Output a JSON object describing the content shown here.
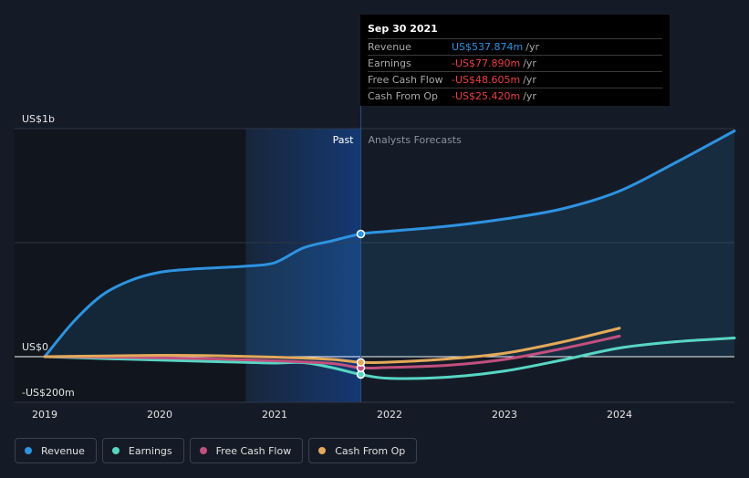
{
  "tooltip": {
    "date": "Sep 30 2021",
    "rows": [
      {
        "label": "Revenue",
        "value": "US$537.874m",
        "unit": "/yr"
      },
      {
        "label": "Earnings",
        "value": "-US$77.890m",
        "unit": "/yr"
      },
      {
        "label": "Free Cash Flow",
        "value": "-US$48.605m",
        "unit": "/yr"
      },
      {
        "label": "Cash From Op",
        "value": "-US$25.420m",
        "unit": "/yr"
      }
    ]
  },
  "labels": {
    "past": "Past",
    "forecast": "Analysts Forecasts"
  },
  "legend": [
    {
      "label": "Revenue",
      "color": "#2e93e0"
    },
    {
      "label": "Earnings",
      "color": "#58d6c4"
    },
    {
      "label": "Free Cash Flow",
      "color": "#c2507e"
    },
    {
      "label": "Cash From Op",
      "color": "#e3a95a"
    }
  ],
  "chart_data": {
    "type": "line",
    "y_tick_labels": [
      "US$1b",
      "US$0",
      "-US$200m"
    ],
    "x_tick_labels": [
      "2019",
      "2020",
      "2021",
      "2022",
      "2023",
      "2024"
    ],
    "ylim": [
      -200,
      1000
    ],
    "xlim": [
      2019.0,
      2025.0
    ],
    "past_end": 2021.75,
    "highlight_start": 2020.75,
    "series": [
      {
        "name": "Revenue",
        "color": "#2e93e0",
        "fill": true,
        "x": [
          2019.0,
          2019.25,
          2019.5,
          2019.75,
          2020.0,
          2020.25,
          2020.5,
          2020.75,
          2021.0,
          2021.25,
          2021.5,
          2021.75,
          2022.0,
          2022.5,
          2023.0,
          2023.5,
          2024.0,
          2024.5,
          2025.0
        ],
        "y": [
          0,
          153,
          270,
          335,
          370,
          383,
          390,
          397,
          412,
          477,
          508,
          538,
          550,
          572,
          604,
          648,
          726,
          854,
          990
        ]
      },
      {
        "name": "Earnings",
        "color": "#58d6c4",
        "fill": false,
        "x": [
          2019.0,
          2019.5,
          2020.0,
          2020.5,
          2020.75,
          2021.0,
          2021.25,
          2021.5,
          2021.75,
          2022.0,
          2022.5,
          2023.0,
          2023.5,
          2024.0,
          2024.5,
          2025.0
        ],
        "y": [
          0,
          -8,
          -15,
          -22,
          -25,
          -28,
          -26,
          -48,
          -78,
          -95,
          -90,
          -63,
          -15,
          38,
          66,
          82
        ]
      },
      {
        "name": "Free Cash Flow",
        "color": "#c2507e",
        "fill": false,
        "x": [
          2019.0,
          2019.5,
          2020.0,
          2020.5,
          2021.0,
          2021.5,
          2021.75,
          2022.0,
          2022.5,
          2023.0,
          2023.5,
          2024.0
        ],
        "y": [
          0,
          -2,
          -5,
          -10,
          -18,
          -30,
          -49,
          -47,
          -38,
          -12,
          35,
          90
        ]
      },
      {
        "name": "Cash From Op",
        "color": "#e3a95a",
        "fill": false,
        "x": [
          2019.0,
          2019.5,
          2020.0,
          2020.5,
          2021.0,
          2021.5,
          2021.75,
          2022.0,
          2022.5,
          2023.0,
          2023.5,
          2024.0
        ],
        "y": [
          0,
          3,
          6,
          4,
          -2,
          -12,
          -25,
          -24,
          -10,
          15,
          64,
          125
        ]
      }
    ]
  }
}
